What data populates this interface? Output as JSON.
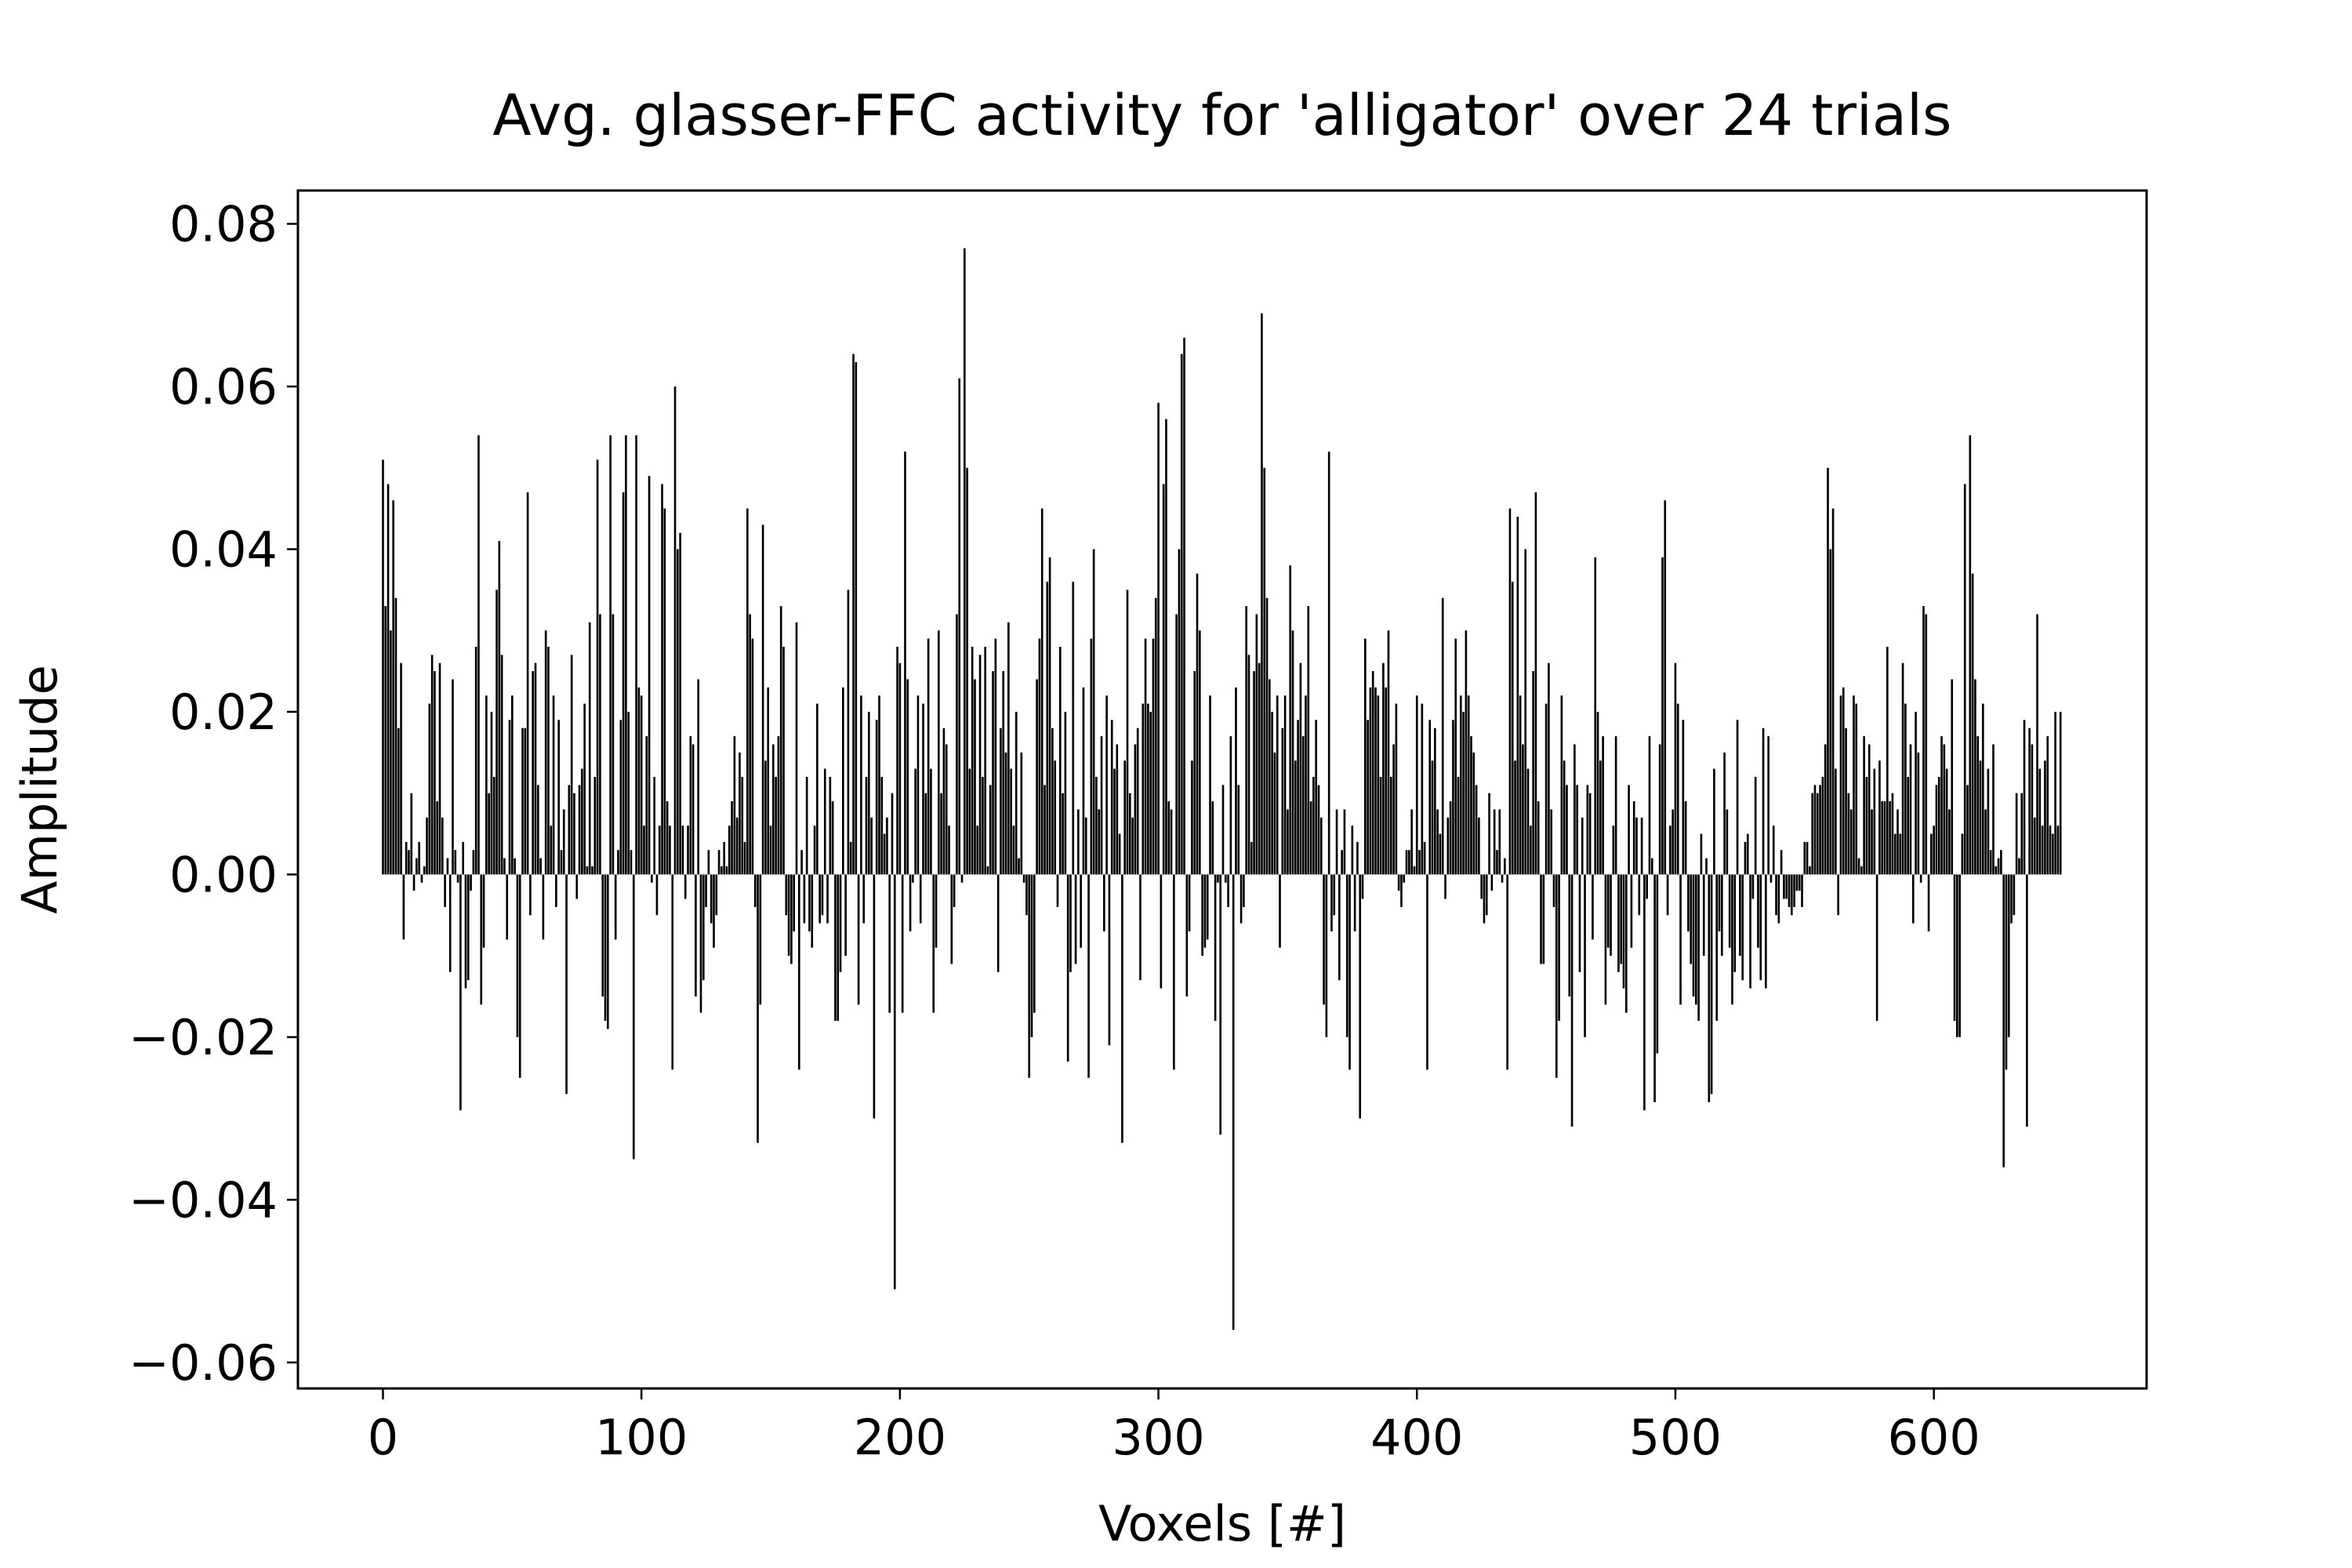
{
  "chart_data": {
    "type": "bar",
    "title": "Avg. glasser-FFC activity for 'alligator' over 24 trials",
    "xlabel": "Voxels [#]",
    "ylabel": "Amplitude",
    "color": "#000000",
    "xlim": [
      -32.9,
      682.3
    ],
    "xticks": [
      0,
      100,
      200,
      300,
      400,
      500,
      600
    ],
    "ylim": [
      -0.0632,
      0.0841
    ],
    "yticks": [
      {
        "value": -0.06,
        "label": "−0.06"
      },
      {
        "value": -0.04,
        "label": "−0.04"
      },
      {
        "value": -0.02,
        "label": "−0.02"
      },
      {
        "value": 0,
        "label": "0.00"
      },
      0.02,
      0.04,
      0.06,
      0.08
    ],
    "x": [
      0,
      1,
      2,
      3,
      4,
      5,
      6,
      7,
      8,
      9,
      10,
      11,
      12,
      13,
      14,
      15,
      16,
      17,
      18,
      19,
      20,
      21,
      22,
      23,
      24,
      25,
      26,
      27,
      28,
      29,
      30,
      31,
      32,
      33,
      34,
      35,
      36,
      37,
      38,
      39,
      40,
      41,
      42,
      43,
      44,
      45,
      46,
      47,
      48,
      49,
      50,
      51,
      52,
      53,
      54,
      55,
      56,
      57,
      58,
      59,
      60,
      61,
      62,
      63,
      64,
      65,
      66,
      67,
      68,
      69,
      70,
      71,
      72,
      73,
      74,
      75,
      76,
      77,
      78,
      79,
      80,
      81,
      82,
      83,
      84,
      85,
      86,
      87,
      88,
      89,
      90,
      91,
      92,
      93,
      94,
      95,
      96,
      97,
      98,
      99,
      100,
      101,
      102,
      103,
      104,
      105,
      106,
      107,
      108,
      109,
      110,
      111,
      112,
      113,
      114,
      115,
      116,
      117,
      118,
      119,
      120,
      121,
      122,
      123,
      124,
      125,
      126,
      127,
      128,
      129,
      130,
      131,
      132,
      133,
      134,
      135,
      136,
      137,
      138,
      139,
      140,
      141,
      142,
      143,
      144,
      145,
      146,
      147,
      148,
      149,
      150,
      151,
      152,
      153,
      154,
      155,
      156,
      157,
      158,
      159,
      160,
      161,
      162,
      163,
      164,
      165,
      166,
      167,
      168,
      169,
      170,
      171,
      172,
      173,
      174,
      175,
      176,
      177,
      178,
      179,
      180,
      181,
      182,
      183,
      184,
      185,
      186,
      187,
      188,
      189,
      190,
      191,
      192,
      193,
      194,
      195,
      196,
      197,
      198,
      199,
      200,
      201,
      202,
      203,
      204,
      205,
      206,
      207,
      208,
      209,
      210,
      211,
      212,
      213,
      214,
      215,
      216,
      217,
      218,
      219,
      220,
      221,
      222,
      223,
      224,
      225,
      226,
      227,
      228,
      229,
      230,
      231,
      232,
      233,
      234,
      235,
      236,
      237,
      238,
      239,
      240,
      241,
      242,
      243,
      244,
      245,
      246,
      247,
      248,
      249,
      250,
      251,
      252,
      253,
      254,
      255,
      256,
      257,
      258,
      259,
      260,
      261,
      262,
      263,
      264,
      265,
      266,
      267,
      268,
      269,
      270,
      271,
      272,
      273,
      274,
      275,
      276,
      277,
      278,
      279,
      280,
      281,
      282,
      283,
      284,
      285,
      286,
      287,
      288,
      289,
      290,
      291,
      292,
      293,
      294,
      295,
      296,
      297,
      298,
      299,
      300,
      301,
      302,
      303,
      304,
      305,
      306,
      307,
      308,
      309,
      310,
      311,
      312,
      313,
      314,
      315,
      316,
      317,
      318,
      319,
      320,
      321,
      322,
      323,
      324,
      325,
      326,
      327,
      328,
      329,
      330,
      331,
      332,
      333,
      334,
      335,
      336,
      337,
      338,
      339,
      340,
      341,
      342,
      343,
      344,
      345,
      346,
      347,
      348,
      349,
      350,
      351,
      352,
      353,
      354,
      355,
      356,
      357,
      358,
      359,
      360,
      361,
      362,
      363,
      364,
      365,
      366,
      367,
      368,
      369,
      370,
      371,
      372,
      373,
      374,
      375,
      376,
      377,
      378,
      379,
      380,
      381,
      382,
      383,
      384,
      385,
      386,
      387,
      388,
      389,
      390,
      391,
      392,
      393,
      394,
      395,
      396,
      397,
      398,
      399,
      400,
      401,
      402,
      403,
      404,
      405,
      406,
      407,
      408,
      409,
      410,
      411,
      412,
      413,
      414,
      415,
      416,
      417,
      418,
      419,
      420,
      421,
      422,
      423,
      424,
      425,
      426,
      427,
      428,
      429,
      430,
      431,
      432,
      433,
      434,
      435,
      436,
      437,
      438,
      439,
      440,
      441,
      442,
      443,
      444,
      445,
      446,
      447,
      448,
      449,
      450,
      451,
      452,
      453,
      454,
      455,
      456,
      457,
      458,
      459,
      460,
      461,
      462,
      463,
      464,
      465,
      466,
      467,
      468,
      469,
      470,
      471,
      472,
      473,
      474,
      475,
      476,
      477,
      478,
      479,
      480,
      481,
      482,
      483,
      484,
      485,
      486,
      487,
      488,
      489,
      490,
      491,
      492,
      493,
      494,
      495,
      496,
      497,
      498,
      499,
      500,
      501,
      502,
      503,
      504,
      505,
      506,
      507,
      508,
      509,
      510,
      511,
      512,
      513,
      514,
      515,
      516,
      517,
      518,
      519,
      520,
      521,
      522,
      523,
      524,
      525,
      526,
      527,
      528,
      529,
      530,
      531,
      532,
      533,
      534,
      535,
      536,
      537,
      538,
      539,
      540,
      541,
      542,
      543,
      544,
      545,
      546,
      547,
      548,
      549,
      550,
      551,
      552,
      553,
      554,
      555,
      556,
      557,
      558,
      559,
      560,
      561,
      562,
      563,
      564,
      565,
      566,
      567,
      568,
      569,
      570,
      571,
      572,
      573,
      574,
      575,
      576,
      577,
      578,
      579,
      580,
      581,
      582,
      583,
      584,
      585,
      586,
      587,
      588,
      589,
      590,
      591,
      592,
      593,
      594,
      595,
      596,
      597,
      598,
      599,
      600,
      601,
      602,
      603,
      604,
      605,
      606,
      607,
      608,
      609,
      610,
      611,
      612,
      613,
      614,
      615,
      616,
      617,
      618,
      619,
      620,
      621,
      622,
      623,
      624,
      625,
      626,
      627,
      628,
      629,
      630,
      631,
      632,
      633,
      634,
      635,
      636,
      637,
      638,
      639,
      640,
      641,
      642,
      643,
      644,
      645,
      646,
      647,
      648,
      649
    ],
    "values": [
      0.051,
      0.033,
      0.048,
      0.03,
      0.046,
      0.034,
      0.018,
      0.026,
      -0.008,
      0.004,
      0.003,
      0.01,
      -0.002,
      0.002,
      0.004,
      -0.001,
      0.001,
      0.007,
      0.021,
      0.027,
      0.025,
      0.009,
      0.026,
      0.007,
      -0.004,
      0.002,
      -0.012,
      0.024,
      0.003,
      -0.001,
      -0.029,
      0.004,
      -0.014,
      -0.013,
      -0.002,
      0.003,
      0.028,
      0.054,
      -0.016,
      -0.009,
      0.022,
      0.01,
      0.02,
      0.012,
      0.035,
      0.041,
      0.027,
      0.002,
      -0.008,
      0.019,
      0.022,
      0.002,
      -0.02,
      -0.025,
      0.018,
      0.018,
      0.047,
      -0.005,
      0.025,
      0.026,
      0.011,
      0.002,
      -0.008,
      0.03,
      0.028,
      0.006,
      0.022,
      -0.004,
      0.019,
      0.003,
      0.008,
      -0.027,
      0.011,
      0.027,
      0.01,
      -0.003,
      0.011,
      0.013,
      0.021,
      0.001,
      0.031,
      0.001,
      0.012,
      0.051,
      0.032,
      -0.015,
      -0.018,
      -0.019,
      0.054,
      0.032,
      -0.008,
      0.003,
      0.019,
      0.047,
      0.054,
      0.02,
      0.003,
      -0.035,
      0.054,
      0.023,
      0.022,
      0.006,
      0.017,
      0.049,
      -0.001,
      0.012,
      -0.005,
      0.006,
      0.048,
      0.045,
      0.009,
      0.006,
      -0.024,
      0.06,
      0.04,
      0.042,
      0.006,
      -0.003,
      0.006,
      0.017,
      0.016,
      -0.015,
      0.024,
      -0.017,
      -0.013,
      -0.004,
      0.003,
      -0.006,
      -0.009,
      -0.005,
      0.003,
      0.001,
      0.004,
      0.001,
      0.006,
      0.009,
      0.017,
      0.007,
      0.015,
      0.012,
      0.004,
      0.045,
      0.032,
      0.029,
      -0.004,
      -0.033,
      -0.016,
      0.043,
      0.014,
      0.023,
      0.006,
      0.016,
      0.012,
      0.017,
      0.033,
      0.028,
      -0.005,
      -0.01,
      -0.011,
      -0.007,
      0.031,
      -0.024,
      0.003,
      -0.006,
      0.012,
      -0.007,
      -0.009,
      0.006,
      0.021,
      -0.006,
      -0.005,
      0.013,
      -0.006,
      0.012,
      0.009,
      -0.018,
      -0.018,
      -0.012,
      0.023,
      -0.01,
      0.035,
      0.004,
      0.064,
      0.063,
      -0.016,
      0.022,
      -0.006,
      0.012,
      0.02,
      0.007,
      -0.03,
      0.019,
      0.022,
      0.012,
      0.005,
      0.007,
      -0.017,
      0.01,
      -0.051,
      0.028,
      0.026,
      -0.017,
      0.052,
      0.024,
      -0.007,
      -0.001,
      0.013,
      0.022,
      -0.006,
      0.021,
      0.01,
      0.029,
      0.013,
      -0.017,
      -0.009,
      0.03,
      0.01,
      0.018,
      0.016,
      0.006,
      -0.011,
      -0.004,
      0.032,
      0.061,
      -0.001,
      0.077,
      0.05,
      0.013,
      0.028,
      0.024,
      0.006,
      0.027,
      0.012,
      0.028,
      0.001,
      0.011,
      0.025,
      0.029,
      -0.012,
      0.018,
      0.025,
      0.015,
      0.031,
      0.013,
      0.006,
      0.02,
      0.002,
      0.015,
      -0.001,
      -0.005,
      -0.025,
      -0.02,
      -0.017,
      0.024,
      0.029,
      0.045,
      0.011,
      0.036,
      0.039,
      0.018,
      0.014,
      -0.004,
      0.028,
      0.01,
      0.02,
      -0.023,
      -0.012,
      0.036,
      -0.011,
      0.008,
      -0.009,
      0.023,
      0.007,
      -0.025,
      0.029,
      0.04,
      0.012,
      0.008,
      0.017,
      -0.007,
      0.022,
      -0.021,
      0.019,
      0.013,
      0.016,
      0.005,
      -0.033,
      0.014,
      0.035,
      0.01,
      0.007,
      0.016,
      0.018,
      -0.013,
      0.021,
      0.029,
      0.021,
      0.02,
      0.029,
      0.034,
      0.058,
      -0.014,
      0.048,
      0.056,
      0.009,
      0.008,
      -0.024,
      0.032,
      0.04,
      0.064,
      0.066,
      -0.015,
      -0.007,
      0.014,
      0.025,
      0.037,
      0.03,
      -0.01,
      -0.009,
      -0.008,
      0.022,
      0.009,
      -0.018,
      -0.001,
      -0.032,
      0.011,
      -0.001,
      -0.004,
      0.017,
      -0.056,
      0.023,
      0.011,
      -0.006,
      -0.004,
      0.033,
      0.027,
      0.004,
      0.025,
      0.032,
      0.026,
      0.069,
      0.05,
      0.034,
      0.024,
      0.02,
      0.015,
      0.022,
      -0.009,
      0.018,
      0.022,
      0.008,
      0.038,
      0.03,
      0.014,
      0.019,
      0.026,
      0.017,
      0.022,
      0.033,
      0.009,
      0.012,
      0.019,
      0.011,
      0.007,
      -0.016,
      -0.02,
      0.052,
      -0.007,
      -0.005,
      0.008,
      -0.013,
      0.003,
      0.008,
      -0.02,
      -0.024,
      0.006,
      -0.007,
      0.004,
      -0.03,
      -0.003,
      0.029,
      0.019,
      0.023,
      0.025,
      0.023,
      0.022,
      0.012,
      0.026,
      0.023,
      0.03,
      0.012,
      0.016,
      0.021,
      -0.002,
      -0.004,
      -0.001,
      0.003,
      0.003,
      0.008,
      0.001,
      0.022,
      0.003,
      0.021,
      0.004,
      -0.024,
      0.019,
      0.014,
      0.018,
      0.008,
      0.005,
      0.034,
      -0.003,
      0.007,
      0.009,
      0.019,
      0.029,
      0.012,
      0.022,
      0.02,
      0.03,
      0.022,
      0.017,
      0.015,
      0.011,
      0.007,
      -0.003,
      -0.006,
      -0.005,
      0.01,
      -0.002,
      0.008,
      0.003,
      0.008,
      -0.001,
      0.002,
      -0.024,
      0.045,
      0.036,
      0.014,
      0.044,
      0.022,
      0.016,
      0.04,
      0.013,
      0.006,
      0.025,
      0.047,
      0.009,
      -0.011,
      -0.011,
      0.021,
      0.026,
      0.008,
      -0.004,
      -0.025,
      -0.018,
      0.022,
      0.014,
      0.011,
      -0.015,
      -0.031,
      0.016,
      0.011,
      -0.012,
      0.007,
      -0.02,
      0.011,
      0.01,
      -0.008,
      0.039,
      0.02,
      0.014,
      0.017,
      -0.016,
      -0.009,
      -0.01,
      0.006,
      0.017,
      -0.012,
      -0.011,
      -0.014,
      -0.017,
      0.011,
      -0.009,
      0.009,
      0.007,
      -0.005,
      0.007,
      -0.029,
      -0.003,
      0.017,
      0.002,
      -0.028,
      -0.022,
      0.016,
      0.039,
      0.046,
      -0.005,
      0.006,
      0.008,
      0.026,
      0.021,
      -0.016,
      0.019,
      0.009,
      -0.007,
      -0.011,
      -0.015,
      -0.016,
      -0.018,
      0.005,
      -0.01,
      0.002,
      -0.028,
      -0.027,
      0.013,
      -0.018,
      -0.007,
      -0.01,
      0.015,
      0.008,
      -0.009,
      -0.016,
      -0.012,
      0.019,
      -0.01,
      -0.013,
      0.004,
      0.005,
      -0.014,
      -0.003,
      0.012,
      -0.009,
      -0.013,
      0.018,
      -0.014,
      0.017,
      -0.001,
      0.006,
      -0.005,
      -0.006,
      0.003,
      -0.003,
      -0.003,
      -0.004,
      -0.005,
      -0.004,
      -0.002,
      -0.002,
      -0.004,
      0.004,
      0.004,
      0.001,
      0.01,
      0.011,
      0.01,
      0.011,
      0.012,
      0.016,
      0.05,
      0.04,
      0.045,
      0.013,
      -0.005,
      0.022,
      0.023,
      0.018,
      0.01,
      0.008,
      0.022,
      0.021,
      0.002,
      0.001,
      0.017,
      0.012,
      0.016,
      0.008,
      0.013,
      -0.018,
      0.014,
      0.009,
      0.009,
      0.028,
      0.009,
      0.01,
      0.005,
      0.008,
      0.005,
      0.026,
      0.021,
      0.012,
      0.016,
      -0.006,
      0.02,
      0.015,
      -0.001,
      0.033,
      0.032,
      -0.007,
      0.005,
      0.006,
      0.011,
      0.012,
      0.017,
      0.016,
      0.013,
      0.008,
      0.024,
      -0.018,
      -0.02,
      -0.02,
      0.005,
      0.048,
      0.011,
      0.054,
      0.037,
      0.024,
      0.017,
      0.014,
      0.021,
      0.008,
      0.013,
      0.003,
      0.016,
      0.001,
      0.002,
      0.003,
      -0.036,
      -0.024,
      -0.02,
      -0.006,
      -0.005,
      0.01,
      0.002,
      0.01,
      0.019,
      -0.031,
      0.018,
      0.016,
      0.007,
      0.032,
      0.013,
      0.006,
      0.014,
      0.017,
      0.006,
      0.005,
      0.02,
      0.006,
      0.02
    ]
  }
}
